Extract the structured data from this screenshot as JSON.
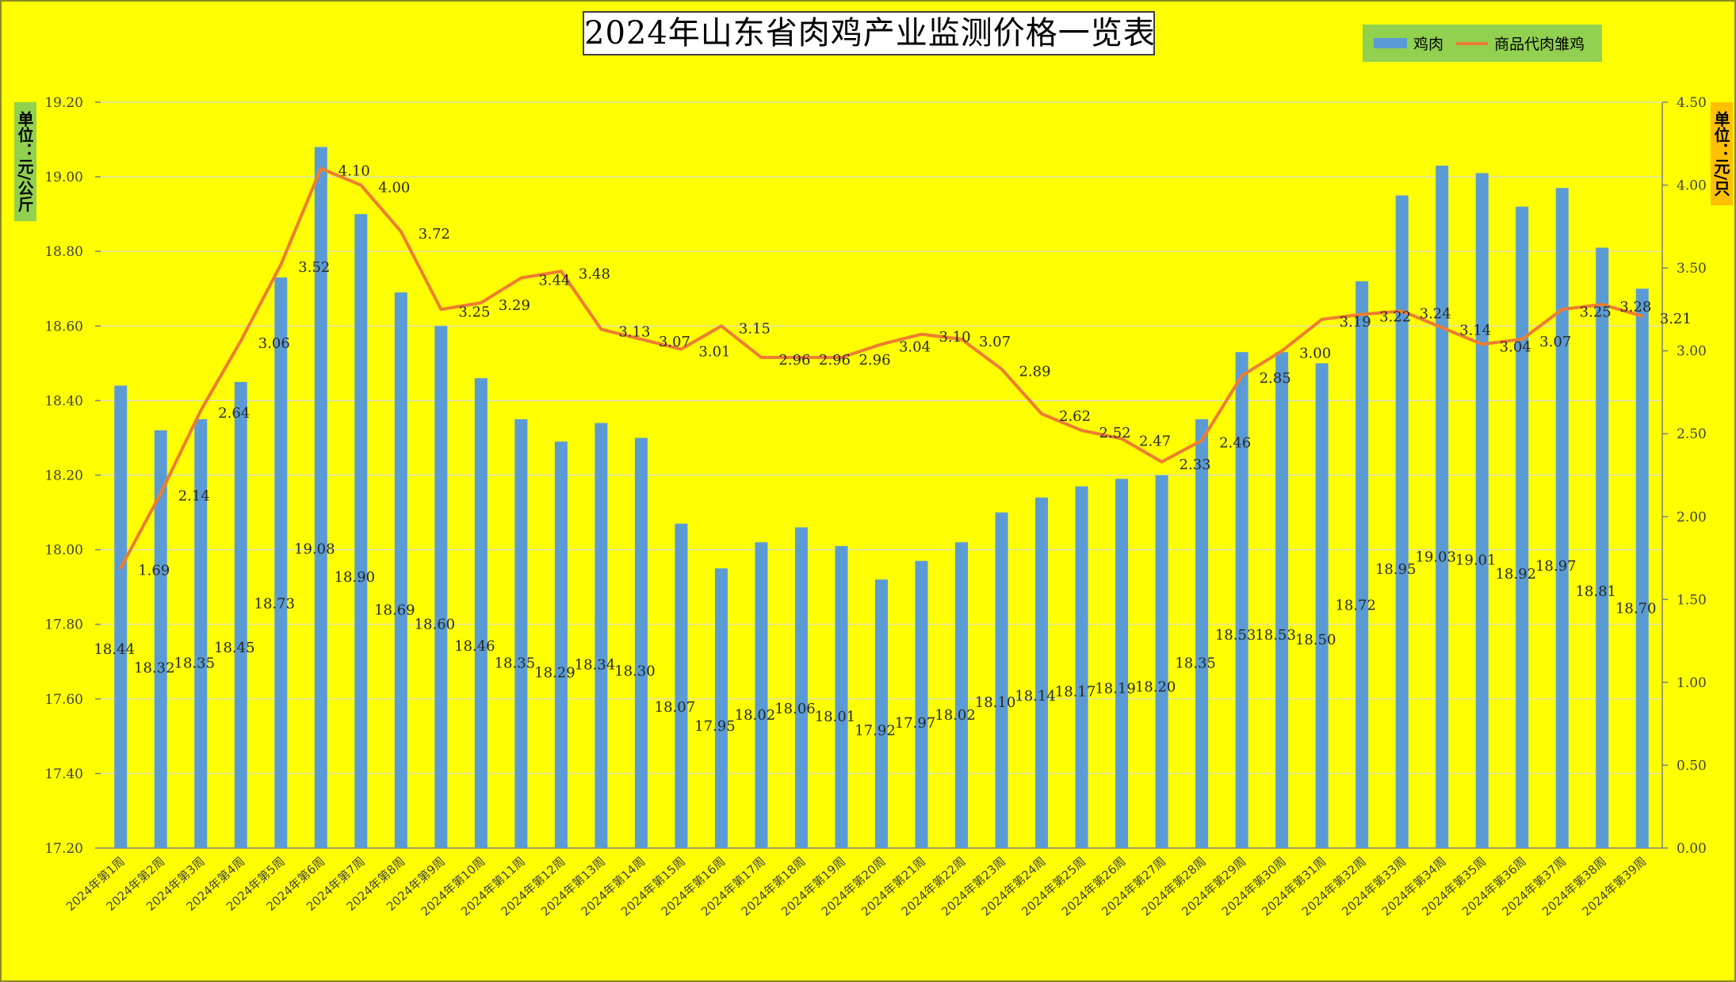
{
  "chart_data": {
    "type": "bar+line",
    "title": "2024年山东省肉鸡产业监测价格一览表",
    "y_left_label": "单位：元/公斤",
    "y_right_label": "单位：元/只",
    "y_left_range": [
      17.2,
      19.2
    ],
    "y_left_ticks": [
      "17.20",
      "17.40",
      "17.60",
      "17.80",
      "18.00",
      "18.20",
      "18.40",
      "18.60",
      "18.80",
      "19.00",
      "19.20"
    ],
    "y_right_range": [
      0,
      4.5
    ],
    "y_right_ticks": [
      "0.00",
      "0.50",
      "1.00",
      "1.50",
      "2.00",
      "2.50",
      "3.00",
      "3.50",
      "4.00",
      "4.50"
    ],
    "grid": true,
    "legend_position": "top-right",
    "categories": [
      "2024年第1周",
      "2024年第2周",
      "2024年第3周",
      "2024年第4周",
      "2024年第5周",
      "2024年第6周",
      "2024年第7周",
      "2024年第8周",
      "2024年第9周",
      "2024年第10周",
      "2024年第11周",
      "2024年第12周",
      "2024年第13周",
      "2024年第14周",
      "2024年第15周",
      "2024年第16周",
      "2024年第17周",
      "2024年第18周",
      "2024年第19周",
      "2024年第20周",
      "2024年第21周",
      "2024年第22周",
      "2024年第23周",
      "2024年第24周",
      "2024年第25周",
      "2024年第26周",
      "2024年第27周",
      "2024年第28周",
      "2024年第29周",
      "2024年第30周",
      "2024年第31周",
      "2024年第32周",
      "2024年第33周",
      "2024年第34周",
      "2024年第35周",
      "2024年第36周",
      "2024年第37周",
      "2024年第38周",
      "2024年第39周"
    ],
    "series": [
      {
        "name": "鸡肉",
        "type": "bar",
        "axis": "left",
        "color": "#5b9bd5",
        "values": [
          18.44,
          18.32,
          18.35,
          18.45,
          18.73,
          19.08,
          18.9,
          18.69,
          18.6,
          18.46,
          18.35,
          18.29,
          18.34,
          18.3,
          18.07,
          17.95,
          18.02,
          18.06,
          18.01,
          17.92,
          17.97,
          18.02,
          18.1,
          18.14,
          18.17,
          18.19,
          18.2,
          18.35,
          18.53,
          18.53,
          18.5,
          18.72,
          18.95,
          19.03,
          19.01,
          18.92,
          18.97,
          18.81,
          18.7
        ],
        "labels": [
          "18.44",
          "18.32",
          "18.35",
          "18.45",
          "18.73",
          "19.08",
          "18.90",
          "18.69",
          "18.60",
          "18.46",
          "18.35",
          "18.29",
          "18.34",
          "18.30",
          "18.07",
          "17.95",
          "18.02",
          "18.06",
          "18.01",
          "17.92",
          "17.97",
          "18.02",
          "18.10",
          "18.14",
          "18.17",
          "18.19",
          "18.20",
          "18.35",
          "18.53",
          "18.53",
          "18.50",
          "18.72",
          "18.95",
          "19.03",
          "19.01",
          "18.92",
          "18.97",
          "18.81",
          "18.70"
        ]
      },
      {
        "name": "商品代肉雏鸡",
        "type": "line",
        "axis": "right",
        "color": "#ed7d31",
        "values": [
          1.69,
          2.14,
          2.64,
          3.06,
          3.52,
          4.1,
          4.0,
          3.72,
          3.25,
          3.29,
          3.44,
          3.48,
          3.13,
          3.07,
          3.01,
          3.15,
          2.96,
          2.96,
          2.96,
          3.04,
          3.1,
          3.07,
          2.89,
          2.62,
          2.52,
          2.47,
          2.33,
          2.46,
          2.85,
          3.0,
          3.19,
          3.22,
          3.24,
          3.14,
          3.04,
          3.07,
          3.25,
          3.28,
          3.21
        ],
        "labels": [
          "1.69",
          "2.14",
          "2.64",
          "3.06",
          "3.52",
          "4.10",
          "4.00",
          "3.72",
          "3.25",
          "3.29",
          "3.44",
          "3.48",
          "3.13",
          "3.07",
          "3.01",
          "3.15",
          "2.96",
          "2.96",
          "2.96",
          "3.04",
          "3.10",
          "3.07",
          "2.89",
          "2.62",
          "2.52",
          "2.47",
          "2.33",
          "2.46",
          "2.85",
          "3.00",
          "3.19",
          "3.22",
          "3.24",
          "3.14",
          "3.04",
          "3.07",
          "3.25",
          "3.28",
          "3.21"
        ]
      }
    ]
  }
}
